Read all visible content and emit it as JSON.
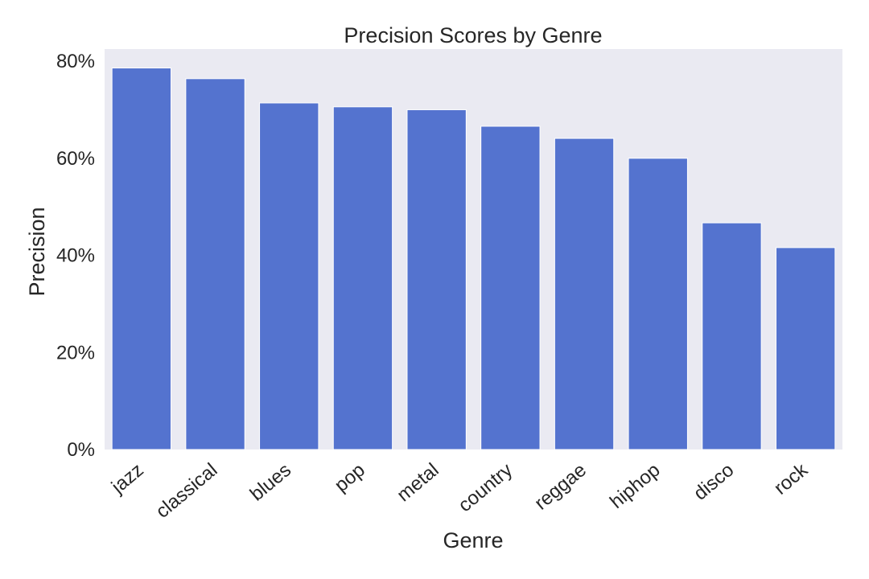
{
  "chart_data": {
    "type": "bar",
    "title": "Precision Scores by Genre",
    "xlabel": "Genre",
    "ylabel": "Precision",
    "categories": [
      "jazz",
      "classical",
      "blues",
      "pop",
      "metal",
      "country",
      "reggae",
      "hiphop",
      "disco",
      "rock"
    ],
    "values": [
      0.786,
      0.764,
      0.714,
      0.706,
      0.7,
      0.666,
      0.641,
      0.6,
      0.467,
      0.416
    ],
    "ylim": [
      0,
      0.825
    ],
    "yticks": [
      0,
      0.2,
      0.4,
      0.6,
      0.8
    ],
    "ytick_labels": [
      "0%",
      "20%",
      "40%",
      "60%",
      "80%"
    ],
    "grid": false,
    "legend": "none",
    "colors": {
      "bar": "#5473CF",
      "plot_background": "#EAEAF2",
      "text": "#262626"
    }
  }
}
